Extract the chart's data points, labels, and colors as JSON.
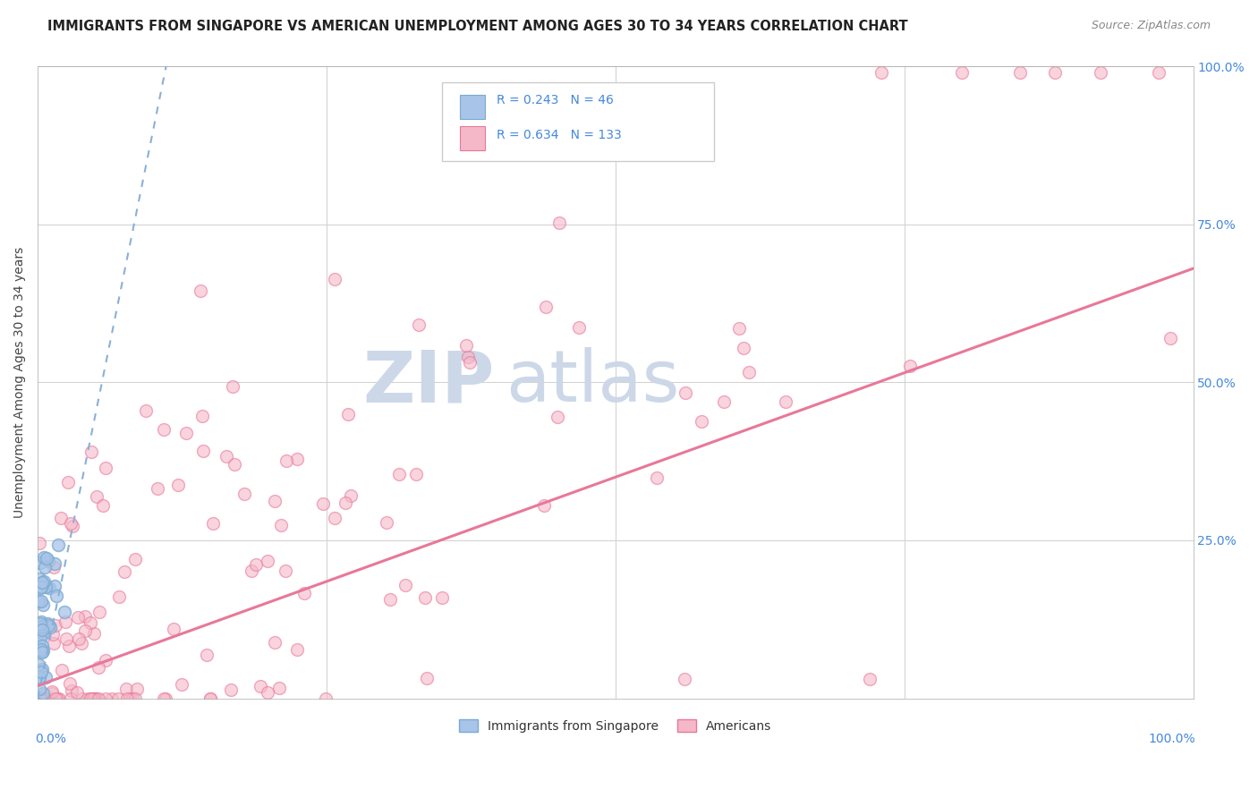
{
  "title": "IMMIGRANTS FROM SINGAPORE VS AMERICAN UNEMPLOYMENT AMONG AGES 30 TO 34 YEARS CORRELATION CHART",
  "source": "Source: ZipAtlas.com",
  "ylabel": "Unemployment Among Ages 30 to 34 years",
  "legend_label1": "Immigrants from Singapore",
  "legend_label2": "Americans",
  "R1": 0.243,
  "N1": 46,
  "R2": 0.634,
  "N2": 133,
  "blue_fill": "#a8c4e8",
  "blue_edge": "#7aaad0",
  "pink_fill": "#f5b8c8",
  "pink_edge": "#e87898",
  "blue_line_color": "#8ab0d8",
  "pink_line_color": "#e87898",
  "grid_color": "#d0d0d0",
  "title_color": "#222222",
  "axis_label_color": "#4488dd",
  "background_color": "#ffffff",
  "legend_box_color": "#f0f0f0",
  "legend_box_edge": "#cccccc",
  "watermark_zip_color": "#c8d8e8",
  "watermark_atlas_color": "#c8d8e8"
}
